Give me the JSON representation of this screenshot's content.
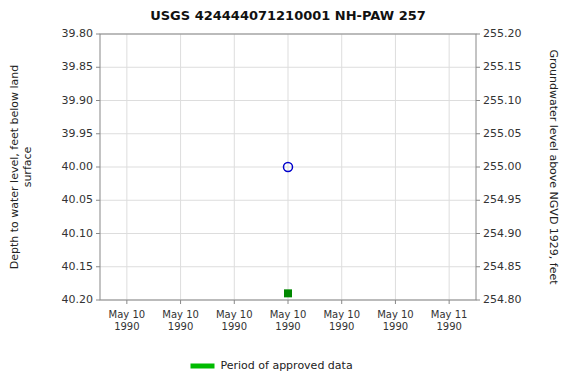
{
  "chart_data": {
    "type": "scatter",
    "title": "USGS 424444071210001 NH-PAW  257",
    "y_label": "Depth to water level, feet below land\nsurface",
    "y2_label": "Groundwater level above NGVD 1929, feet",
    "categories": [
      "May 10\n1990",
      "May 10\n1990",
      "May 10\n1990",
      "May 10\n1990",
      "May 10\n1990",
      "May 10\n1990",
      "May 11\n1990"
    ],
    "series": [
      {
        "color": "#0000cc",
        "marker": "circle",
        "values": [
          null,
          null,
          null,
          40.0,
          null,
          null,
          null
        ]
      },
      {
        "color": "#008800",
        "marker": "square",
        "values": [
          null,
          null,
          null,
          40.19,
          null,
          null,
          null
        ]
      },
      {
        "name": "Period of approved data",
        "type": "line",
        "color": "#00bb00",
        "values": [
          null,
          null,
          null,
          null,
          null,
          null,
          null
        ]
      }
    ],
    "ylim": [
      40.2,
      39.8
    ],
    "yticks": [
      {
        "value": 39.8,
        "label": "39.80"
      },
      {
        "value": 39.85,
        "label": "39.85"
      },
      {
        "value": 39.9,
        "label": "39.90"
      },
      {
        "value": 39.95,
        "label": "39.95"
      },
      {
        "value": 40.0,
        "label": "40.00"
      },
      {
        "value": 40.05,
        "label": "40.05"
      },
      {
        "value": 40.1,
        "label": "40.10"
      },
      {
        "value": 40.15,
        "label": "40.15"
      },
      {
        "value": 40.2,
        "label": "40.20"
      }
    ],
    "y2lim": [
      254.8,
      255.2
    ],
    "y2ticks": [
      {
        "value": 255.2,
        "label": "255.20"
      },
      {
        "value": 255.15,
        "label": "255.15"
      },
      {
        "value": 255.1,
        "label": "255.10"
      },
      {
        "value": 255.05,
        "label": "255.05"
      },
      {
        "value": 255.0,
        "label": "255.00"
      },
      {
        "value": 254.95,
        "label": "254.95"
      },
      {
        "value": 254.9,
        "label": "254.90"
      },
      {
        "value": 254.85,
        "label": "254.85"
      },
      {
        "value": 254.8,
        "label": "254.80"
      }
    ],
    "grid": true,
    "legend": "bottom"
  }
}
